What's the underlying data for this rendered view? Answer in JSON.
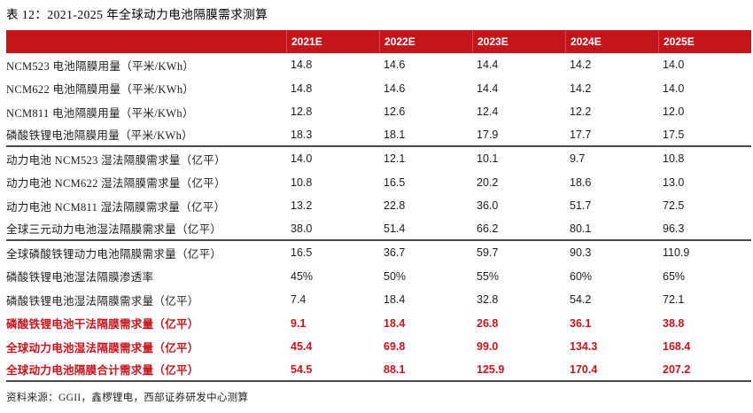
{
  "page": {
    "title": "表 12：2021-2025 年全球动力电池隔膜需求测算",
    "source_note": "资料来源：GGII，鑫椤锂电，西部证券研发中心测算"
  },
  "colors": {
    "header_bg": "#C4151C",
    "header_text": "#FFFFFF",
    "emphasis_text": "#C4151C",
    "body_text": "#1C1C1C",
    "rule": "#4A4A4A"
  },
  "table": {
    "header": [
      "2021E",
      "2022E",
      "2023E",
      "2024E",
      "2025E"
    ],
    "rows": [
      {
        "label": "NCM523 电池隔膜用量（平米/KWh）",
        "values": [
          "14.8",
          "14.6",
          "14.4",
          "14.2",
          "14.0"
        ],
        "emphasis": false,
        "rule_after": false
      },
      {
        "label": "NCM622 电池隔膜用量（平米/KWh）",
        "values": [
          "14.8",
          "14.6",
          "14.4",
          "14.2",
          "14.0"
        ],
        "emphasis": false,
        "rule_after": false
      },
      {
        "label": "NCM811 电池隔膜用量（平米/KWh）",
        "values": [
          "12.8",
          "12.6",
          "12.4",
          "12.2",
          "12.0"
        ],
        "emphasis": false,
        "rule_after": false
      },
      {
        "label": "磷酸铁锂电池隔膜用量（平米/KWh）",
        "values": [
          "18.3",
          "18.1",
          "17.9",
          "17.7",
          "17.5"
        ],
        "emphasis": false,
        "rule_after": true
      },
      {
        "label": "动力电池 NCM523 湿法隔膜需求量（亿平）",
        "values": [
          "14.0",
          "12.1",
          "10.1",
          "9.7",
          "10.8"
        ],
        "emphasis": false,
        "rule_after": false
      },
      {
        "label": "动力电池 NCM622 湿法隔膜需求量（亿平）",
        "values": [
          "10.8",
          "16.5",
          "20.2",
          "18.6",
          "13.0"
        ],
        "emphasis": false,
        "rule_after": false
      },
      {
        "label": "动力电池 NCM811 湿法隔膜需求量（亿平）",
        "values": [
          "13.2",
          "22.8",
          "36.0",
          "51.7",
          "72.5"
        ],
        "emphasis": false,
        "rule_after": false
      },
      {
        "label": "全球三元动力电池湿法隔膜需求量（亿平）",
        "values": [
          "38.0",
          "51.4",
          "66.2",
          "80.1",
          "96.3"
        ],
        "emphasis": false,
        "rule_after": true
      },
      {
        "label": "全球磷酸铁锂动力电池隔膜需求量（亿平）",
        "values": [
          "16.5",
          "36.7",
          "59.7",
          "90.3",
          "110.9"
        ],
        "emphasis": false,
        "rule_after": false
      },
      {
        "label": "磷酸铁锂电池湿法隔膜渗透率",
        "values": [
          "45%",
          "50%",
          "55%",
          "60%",
          "65%"
        ],
        "emphasis": false,
        "rule_after": false
      },
      {
        "label": "磷酸铁锂电池湿法隔膜需求量（亿平）",
        "values": [
          "7.4",
          "18.4",
          "32.8",
          "54.2",
          "72.1"
        ],
        "emphasis": false,
        "rule_after": false
      },
      {
        "label": "磷酸铁锂电池干法隔膜需求量（亿平）",
        "values": [
          "9.1",
          "18.4",
          "26.8",
          "36.1",
          "38.8"
        ],
        "emphasis": true,
        "rule_after": false
      },
      {
        "label": "全球动力电池湿法隔膜需求量（亿平）",
        "values": [
          "45.4",
          "69.8",
          "99.0",
          "134.3",
          "168.4"
        ],
        "emphasis": true,
        "rule_after": false
      },
      {
        "label": "全球动力电池隔膜合计需求量（亿平）",
        "values": [
          "54.5",
          "88.1",
          "125.9",
          "170.4",
          "207.2"
        ],
        "emphasis": true,
        "rule_after": true
      }
    ]
  }
}
